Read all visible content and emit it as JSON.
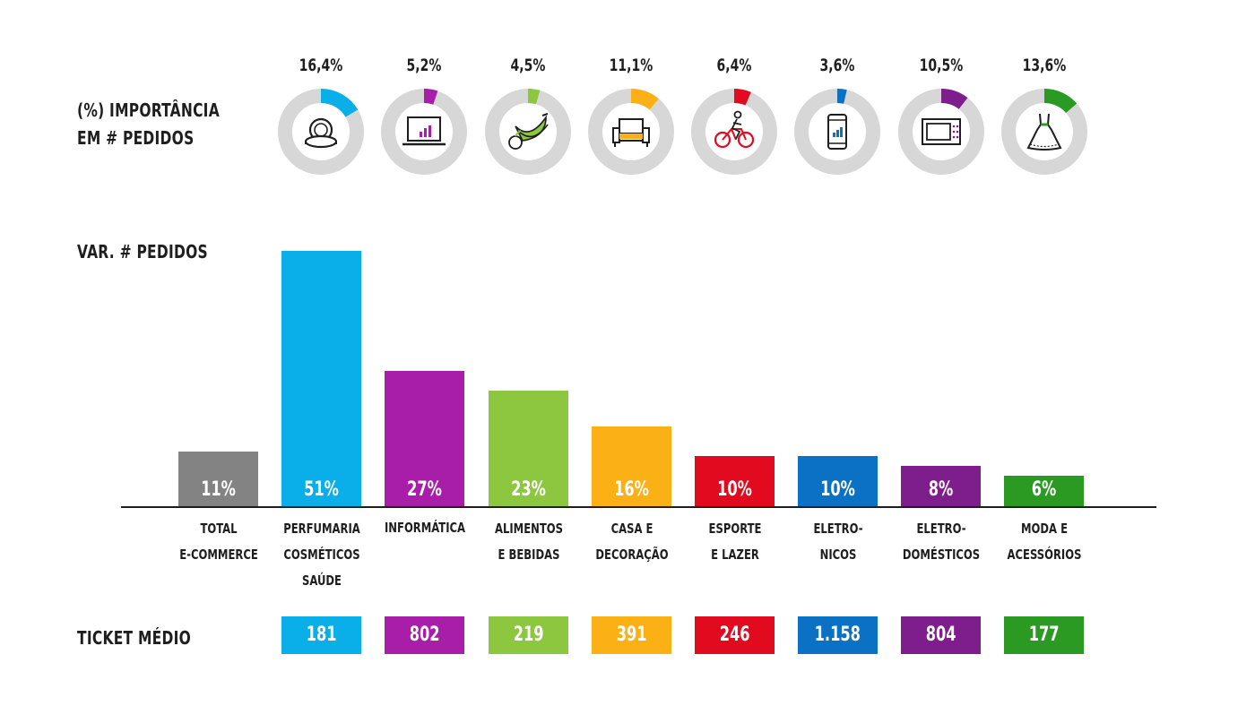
{
  "labels": {
    "importance_line1": "(%) IMPORTÂNCIA",
    "importance_line2": "EM # PEDIDOS",
    "var_pedidos": "VAR. # PEDIDOS",
    "ticket_medio": "TICKET MÉDIO"
  },
  "chart_data": [
    {
      "type": "pie",
      "title": "(%) IMPORTÂNCIA EM # PEDIDOS",
      "categories": [
        "PERFUMARIA COSMÉTICOS SAÚDE",
        "INFORMÁTICA",
        "ALIMENTOS E BEBIDAS",
        "CASA E DECORAÇÃO",
        "ESPORTE E LAZER",
        "ELETRONICOS",
        "ELETRODOMÉSTICOS",
        "MODA E ACESSÓRIOS"
      ],
      "values": [
        16.4,
        5.2,
        4.5,
        11.1,
        6.4,
        3.6,
        10.5,
        13.6
      ],
      "value_labels": [
        "16,4%",
        "5,2%",
        "4,5%",
        "11,1%",
        "6,4%",
        "3,6%",
        "10,5%",
        "13,6%"
      ],
      "icons": [
        "compact-mirror-icon",
        "laptop-icon",
        "fruits-icon",
        "armchair-icon",
        "cyclist-icon",
        "smartphone-icon",
        "microwave-icon",
        "dress-icon"
      ],
      "colors": [
        "#0aaee8",
        "#a91ea9",
        "#8dc63f",
        "#fbb116",
        "#e10a1e",
        "#0a71c4",
        "#7e1e8c",
        "#2a9a23"
      ],
      "ring_color": "#d7d7d7"
    },
    {
      "type": "bar",
      "title": "VAR. # PEDIDOS",
      "categories": [
        "TOTAL\nE-COMMERCE",
        "PERFUMARIA\nCOSMÉTICOS\nSAÚDE",
        "INFORMÁTICA",
        "ALIMENTOS\nE BEBIDAS",
        "CASA E\nDECORAÇÃO",
        "ESPORTE\nE LAZER",
        "ELETRO-\nNICOS",
        "ELETRO-\nDOMÉSTICOS",
        "MODA E\nACESSÓRIOS"
      ],
      "values": [
        11,
        51,
        27,
        23,
        16,
        10,
        10,
        8,
        6
      ],
      "value_labels": [
        "11%",
        "51%",
        "27%",
        "23%",
        "16%",
        "10%",
        "10%",
        "8%",
        "6%"
      ],
      "colors": [
        "#838383",
        "#0aaee8",
        "#a91ea9",
        "#8dc63f",
        "#fbb116",
        "#e10a1e",
        "#0a71c4",
        "#7e1e8c",
        "#2a9a23"
      ],
      "ylim": [
        0,
        51
      ]
    },
    {
      "type": "table",
      "title": "TICKET MÉDIO",
      "categories": [
        "PERFUMARIA COSMÉTICOS SAÚDE",
        "INFORMÁTICA",
        "ALIMENTOS E BEBIDAS",
        "CASA E DECORAÇÃO",
        "ESPORTE E LAZER",
        "ELETRONICOS",
        "ELETRODOMÉSTICOS",
        "MODA E ACESSÓRIOS"
      ],
      "values": [
        181,
        802,
        219,
        391,
        246,
        1158,
        804,
        177
      ],
      "value_labels": [
        "181",
        "802",
        "219",
        "391",
        "246",
        "1.158",
        "804",
        "177"
      ],
      "colors": [
        "#0aaee8",
        "#a91ea9",
        "#8dc63f",
        "#fbb116",
        "#e10a1e",
        "#0a71c4",
        "#7e1e8c",
        "#2a9a23"
      ]
    }
  ]
}
